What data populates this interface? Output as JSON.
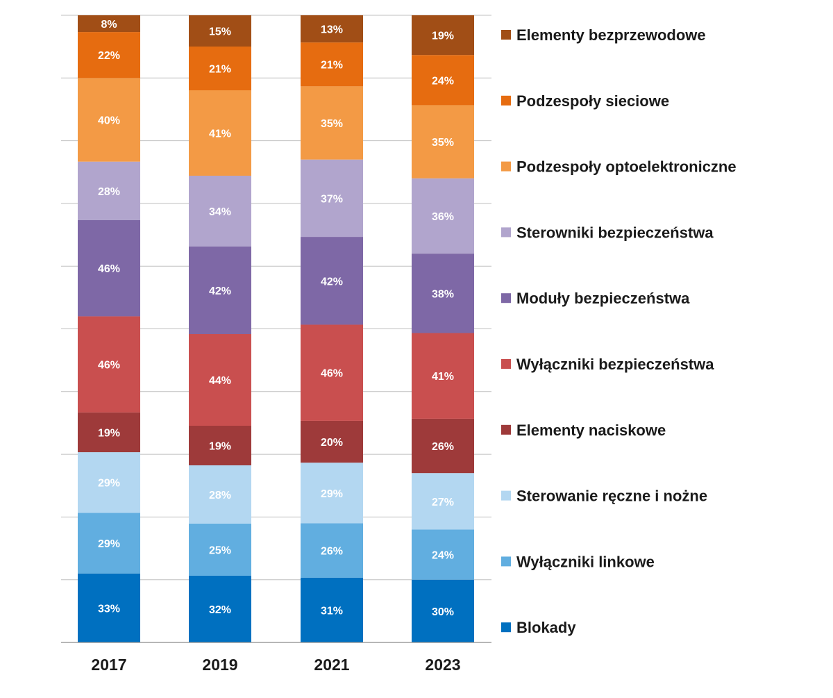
{
  "colors": {
    "Blokady": "#0070c0",
    "Wyłączniki linkowe": "#61aee0",
    "Sterowanie ręczne i nożne": "#b3d7f1",
    "Elementy naciskowe": "#9e3a3a",
    "Wyłączniki bezpieczeństwa": "#c94f4f",
    "Moduły bezpieczeństwa": "#7e68a6",
    "Sterowniki bezpieczeństwa": "#b1a5cd",
    "Podzespoły optoelektroniczne": "#f39a45",
    "Podzespoły sieciowe": "#e66c10",
    "Elementy bezprzewodowe": "#a14e16"
  },
  "chart_data": {
    "type": "bar",
    "stacked": true,
    "normalized": true,
    "categories": [
      "2017",
      "2019",
      "2021",
      "2023"
    ],
    "series": [
      {
        "name": "Blokady",
        "values": [
          33,
          32,
          31,
          30
        ],
        "labels": [
          "33%",
          "32%",
          "31%",
          "30%"
        ]
      },
      {
        "name": "Wyłączniki linkowe",
        "values": [
          29,
          25,
          26,
          24
        ],
        "labels": [
          "29%",
          "25%",
          "26%",
          "24%"
        ]
      },
      {
        "name": "Sterowanie ręczne i nożne",
        "values": [
          29,
          28,
          29,
          27
        ],
        "labels": [
          "29%",
          "28%",
          "29%",
          "27%"
        ]
      },
      {
        "name": "Elementy naciskowe",
        "values": [
          19,
          19,
          20,
          26
        ],
        "labels": [
          "19%",
          "19%",
          "20%",
          "26%"
        ]
      },
      {
        "name": "Wyłączniki bezpieczeństwa",
        "values": [
          46,
          44,
          46,
          41
        ],
        "labels": [
          "46%",
          "44%",
          "46%",
          "41%"
        ]
      },
      {
        "name": "Moduły bezpieczeństwa",
        "values": [
          46,
          42,
          42,
          38
        ],
        "labels": [
          "46%",
          "42%",
          "42%",
          "38%"
        ]
      },
      {
        "name": "Sterowniki bezpieczeństwa",
        "values": [
          28,
          34,
          37,
          36
        ],
        "labels": [
          "28%",
          "34%",
          "37%",
          "36%"
        ]
      },
      {
        "name": "Podzespoły optoelektroniczne",
        "values": [
          40,
          41,
          35,
          35
        ],
        "labels": [
          "40%",
          "41%",
          "35%",
          "35%"
        ]
      },
      {
        "name": "Podzespoły sieciowe",
        "values": [
          22,
          21,
          21,
          24
        ],
        "labels": [
          "22%",
          "21%",
          "21%",
          "24%"
        ]
      },
      {
        "name": "Elementy bezprzewodowe",
        "values": [
          8,
          15,
          13,
          19
        ],
        "labels": [
          "8%",
          "15%",
          "13%",
          "19%"
        ]
      }
    ],
    "title": "",
    "xlabel": "",
    "ylabel": "",
    "grid": true,
    "legend_position": "right",
    "legend_order": [
      "Elementy bezprzewodowe",
      "Podzespoły sieciowe",
      "Podzespoły optoelektroniczne",
      "Sterowniki bezpieczeństwa",
      "Moduły bezpieczeństwa",
      "Wyłączniki bezpieczeństwa",
      "Elementy naciskowe",
      "Sterowanie ręczne i nożne",
      "Wyłączniki linkowe",
      "Blokady"
    ]
  }
}
